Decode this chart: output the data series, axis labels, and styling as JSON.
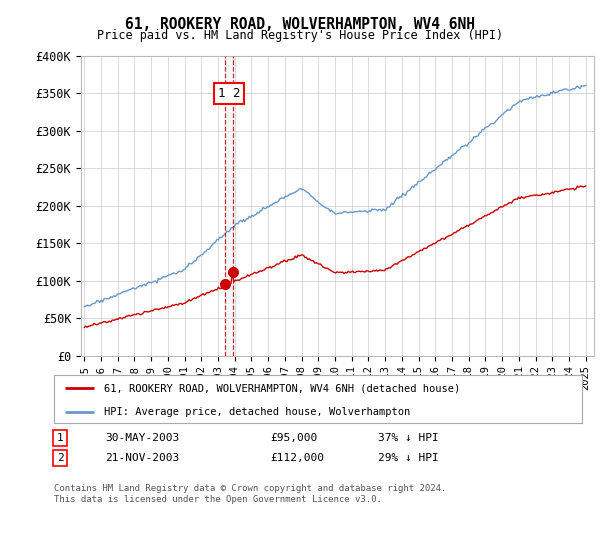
{
  "title": "61, ROOKERY ROAD, WOLVERHAMPTON, WV4 6NH",
  "subtitle": "Price paid vs. HM Land Registry's House Price Index (HPI)",
  "ylim": [
    0,
    400000
  ],
  "yticks": [
    0,
    50000,
    100000,
    150000,
    200000,
    250000,
    300000,
    350000,
    400000
  ],
  "ytick_labels": [
    "£0",
    "£50K",
    "£100K",
    "£150K",
    "£200K",
    "£250K",
    "£300K",
    "£350K",
    "£400K"
  ],
  "red_line_label": "61, ROOKERY ROAD, WOLVERHAMPTON, WV4 6NH (detached house)",
  "blue_line_label": "HPI: Average price, detached house, Wolverhampton",
  "purchase1_date": "30-MAY-2003",
  "purchase1_price": "£95,000",
  "purchase1_hpi": "37% ↓ HPI",
  "purchase1_year": 2003.41,
  "purchase1_value": 95000,
  "purchase2_date": "21-NOV-2003",
  "purchase2_price": "£112,000",
  "purchase2_hpi": "29% ↓ HPI",
  "purchase2_year": 2003.89,
  "purchase2_value": 112000,
  "footer": "Contains HM Land Registry data © Crown copyright and database right 2024.\nThis data is licensed under the Open Government Licence v3.0.",
  "background_color": "#ffffff",
  "grid_color": "#cccccc",
  "red_color": "#cc0000",
  "blue_color": "#6699cc",
  "shade_color": "#ddeeff"
}
